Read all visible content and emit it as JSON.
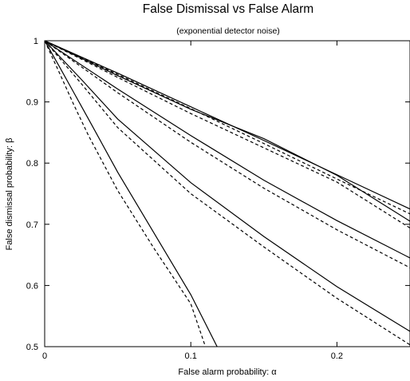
{
  "chart_data": {
    "type": "line",
    "title": "False Dismissal vs False Alarm",
    "subtitle": "(exponential detector noise)",
    "xlabel": "False alarm probability: α",
    "ylabel": "False dismissal probability: β",
    "xlim": [
      0,
      0.25
    ],
    "ylim": [
      0.5,
      1
    ],
    "xticks": [
      0,
      0.1,
      0.2
    ],
    "xtick_labels": [
      "0",
      "0.1",
      "0.2"
    ],
    "yticks": [
      0.5,
      0.6,
      0.7,
      0.8,
      0.9,
      1
    ],
    "ytick_labels": [
      "0.5",
      "0.6",
      "0.7",
      "0.8",
      "0.9",
      "1"
    ],
    "grid": false,
    "legend": "none",
    "series": [
      {
        "style": "solid",
        "points": [
          [
            0,
            1
          ],
          [
            0.01,
            0.958
          ],
          [
            0.02,
            0.915
          ],
          [
            0.03,
            0.872
          ],
          [
            0.05,
            0.785
          ],
          [
            0.075,
            0.685
          ],
          [
            0.1,
            0.585
          ],
          [
            0.118,
            0.5
          ]
        ]
      },
      {
        "style": "dashed",
        "points": [
          [
            0,
            1
          ],
          [
            0.01,
            0.948
          ],
          [
            0.02,
            0.895
          ],
          [
            0.03,
            0.845
          ],
          [
            0.05,
            0.755
          ],
          [
            0.075,
            0.66
          ],
          [
            0.1,
            0.57
          ],
          [
            0.11,
            0.5
          ]
        ]
      },
      {
        "style": "solid",
        "points": [
          [
            0,
            1
          ],
          [
            0.025,
            0.937
          ],
          [
            0.05,
            0.872
          ],
          [
            0.1,
            0.768
          ],
          [
            0.15,
            0.68
          ],
          [
            0.2,
            0.598
          ],
          [
            0.25,
            0.525
          ]
        ]
      },
      {
        "style": "dashed",
        "points": [
          [
            0,
            1
          ],
          [
            0.025,
            0.93
          ],
          [
            0.05,
            0.858
          ],
          [
            0.1,
            0.75
          ],
          [
            0.15,
            0.663
          ],
          [
            0.2,
            0.579
          ],
          [
            0.25,
            0.503
          ]
        ]
      },
      {
        "style": "solid",
        "points": [
          [
            0,
            1
          ],
          [
            0.05,
            0.921
          ],
          [
            0.1,
            0.845
          ],
          [
            0.15,
            0.772
          ],
          [
            0.2,
            0.706
          ],
          [
            0.25,
            0.645
          ]
        ]
      },
      {
        "style": "dashed",
        "points": [
          [
            0,
            1
          ],
          [
            0.05,
            0.915
          ],
          [
            0.1,
            0.834
          ],
          [
            0.15,
            0.759
          ],
          [
            0.2,
            0.691
          ],
          [
            0.25,
            0.629
          ]
        ]
      },
      {
        "style": "solid",
        "points": [
          [
            0,
            1
          ],
          [
            0.05,
            0.943
          ],
          [
            0.1,
            0.888
          ],
          [
            0.15,
            0.84
          ],
          [
            0.2,
            0.78
          ],
          [
            0.25,
            0.705
          ]
        ]
      },
      {
        "style": "dashed",
        "points": [
          [
            0,
            1
          ],
          [
            0.05,
            0.94
          ],
          [
            0.1,
            0.881
          ],
          [
            0.15,
            0.825
          ],
          [
            0.2,
            0.769
          ],
          [
            0.25,
            0.694
          ]
        ]
      },
      {
        "style": "solid",
        "points": [
          [
            0,
            1
          ],
          [
            0.05,
            0.947
          ],
          [
            0.1,
            0.892
          ],
          [
            0.15,
            0.837
          ],
          [
            0.2,
            0.781
          ],
          [
            0.25,
            0.725
          ]
        ]
      },
      {
        "style": "dashed",
        "points": [
          [
            0,
            1
          ],
          [
            0.05,
            0.945
          ],
          [
            0.1,
            0.889
          ],
          [
            0.15,
            0.832
          ],
          [
            0.2,
            0.774
          ],
          [
            0.25,
            0.717
          ]
        ]
      }
    ]
  }
}
